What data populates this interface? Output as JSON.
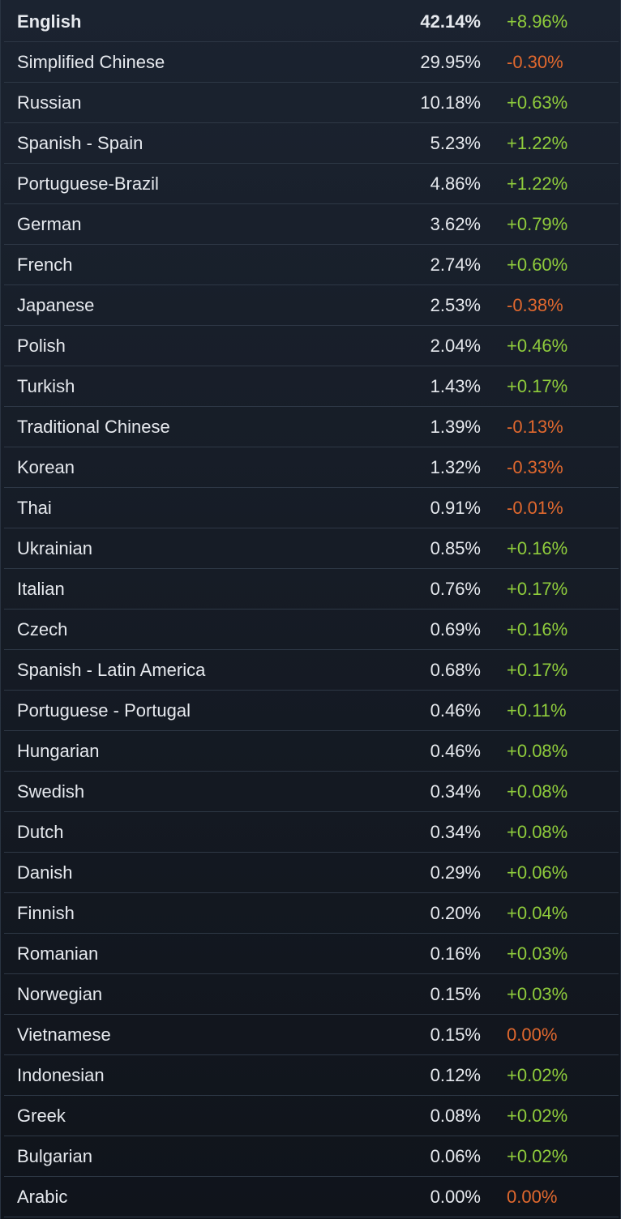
{
  "rows": [
    {
      "language": "English",
      "share": "42.14%",
      "change": "+8.96%",
      "trend": "up"
    },
    {
      "language": "Simplified Chinese",
      "share": "29.95%",
      "change": "-0.30%",
      "trend": "down"
    },
    {
      "language": "Russian",
      "share": "10.18%",
      "change": "+0.63%",
      "trend": "up"
    },
    {
      "language": "Spanish - Spain",
      "share": "5.23%",
      "change": "+1.22%",
      "trend": "up"
    },
    {
      "language": "Portuguese-Brazil",
      "share": "4.86%",
      "change": "+1.22%",
      "trend": "up"
    },
    {
      "language": "German",
      "share": "3.62%",
      "change": "+0.79%",
      "trend": "up"
    },
    {
      "language": "French",
      "share": "2.74%",
      "change": "+0.60%",
      "trend": "up"
    },
    {
      "language": "Japanese",
      "share": "2.53%",
      "change": "-0.38%",
      "trend": "down"
    },
    {
      "language": "Polish",
      "share": "2.04%",
      "change": "+0.46%",
      "trend": "up"
    },
    {
      "language": "Turkish",
      "share": "1.43%",
      "change": "+0.17%",
      "trend": "up"
    },
    {
      "language": "Traditional Chinese",
      "share": "1.39%",
      "change": "-0.13%",
      "trend": "down"
    },
    {
      "language": "Korean",
      "share": "1.32%",
      "change": "-0.33%",
      "trend": "down"
    },
    {
      "language": "Thai",
      "share": "0.91%",
      "change": "-0.01%",
      "trend": "down"
    },
    {
      "language": "Ukrainian",
      "share": "0.85%",
      "change": "+0.16%",
      "trend": "up"
    },
    {
      "language": "Italian",
      "share": "0.76%",
      "change": "+0.17%",
      "trend": "up"
    },
    {
      "language": "Czech",
      "share": "0.69%",
      "change": "+0.16%",
      "trend": "up"
    },
    {
      "language": "Spanish - Latin America",
      "share": "0.68%",
      "change": "+0.17%",
      "trend": "up"
    },
    {
      "language": "Portuguese - Portugal",
      "share": "0.46%",
      "change": "+0.11%",
      "trend": "up"
    },
    {
      "language": "Hungarian",
      "share": "0.46%",
      "change": "+0.08%",
      "trend": "up"
    },
    {
      "language": "Swedish",
      "share": "0.34%",
      "change": "+0.08%",
      "trend": "up"
    },
    {
      "language": "Dutch",
      "share": "0.34%",
      "change": "+0.08%",
      "trend": "up"
    },
    {
      "language": "Danish",
      "share": "0.29%",
      "change": "+0.06%",
      "trend": "up"
    },
    {
      "language": "Finnish",
      "share": "0.20%",
      "change": "+0.04%",
      "trend": "up"
    },
    {
      "language": "Romanian",
      "share": "0.16%",
      "change": "+0.03%",
      "trend": "up"
    },
    {
      "language": "Norwegian",
      "share": "0.15%",
      "change": "+0.03%",
      "trend": "up"
    },
    {
      "language": "Vietnamese",
      "share": "0.15%",
      "change": "0.00%",
      "trend": "down"
    },
    {
      "language": "Indonesian",
      "share": "0.12%",
      "change": "+0.02%",
      "trend": "up"
    },
    {
      "language": "Greek",
      "share": "0.08%",
      "change": "+0.02%",
      "trend": "up"
    },
    {
      "language": "Bulgarian",
      "share": "0.06%",
      "change": "+0.02%",
      "trend": "up"
    },
    {
      "language": "Arabic",
      "share": "0.00%",
      "change": "0.00%",
      "trend": "down"
    }
  ],
  "colors": {
    "positive": "#8fcc3c",
    "negative": "#e0682e",
    "text": "#e6e9ee",
    "row_divider": "#2e3846"
  }
}
